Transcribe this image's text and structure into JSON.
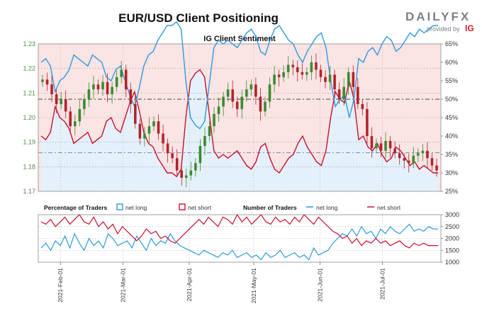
{
  "header": {
    "title": "EUR/USD Client Positioning",
    "logo_text": "DAILYFX",
    "logo_sub": "provided by",
    "logo_brand": "IG"
  },
  "colors": {
    "net_long": "#2f98e0",
    "net_short": "#c8102e",
    "candle_up": "#3a8a2e",
    "candle_down": "#b2222a",
    "bg_long": "#e4f1fb",
    "bg_short": "#fbe4e4",
    "axis_text": "#55884a"
  },
  "chart_data": [
    {
      "type": "candlestick+line",
      "title": "IG Client Sentiment",
      "price_axis": {
        "ticks": [
          "1.23",
          "1.22",
          "1.21",
          "1.20",
          "1.19",
          "1.18",
          "1.17"
        ],
        "ylim": [
          1.17,
          1.23
        ]
      },
      "percent_axis": {
        "ticks": [
          "65%",
          "60%",
          "55%",
          "50%",
          "45%",
          "40%",
          "35%",
          "30%",
          "25%"
        ],
        "ylim": [
          25,
          65
        ]
      },
      "x_ticks": [
        "2021-Feb-01",
        "2021-Mar-01",
        "2021-Apr-01",
        "2021-May-01",
        "2021-Jun-01",
        "2021-Jul-01"
      ],
      "reference_lines": [
        50,
        35.5
      ],
      "close": [
        1.2155,
        1.2135,
        1.2095,
        1.2055,
        1.2075,
        1.2025,
        1.1965,
        1.1985,
        1.2035,
        1.2075,
        1.2115,
        1.2135,
        1.2115,
        1.2145,
        1.2095,
        1.2125,
        1.2165,
        1.2195,
        1.2115,
        1.2055,
        1.1975,
        1.1915,
        1.1935,
        1.1965,
        1.1985,
        1.1935,
        1.1895,
        1.1855,
        1.1835,
        1.1785,
        1.1755,
        1.1765,
        1.1785,
        1.1815,
        1.1885,
        1.1925,
        1.1965,
        1.2015,
        1.2045,
        1.2085,
        1.2115,
        1.2065,
        1.2035,
        1.2085,
        1.2115,
        1.2135,
        1.2085,
        1.2025,
        1.2065,
        1.2135,
        1.2175,
        1.2165,
        1.2185,
        1.2215,
        1.2205,
        1.2185,
        1.2175,
        1.2185,
        1.2225,
        1.2195,
        1.2165,
        1.2145,
        1.2175,
        1.2115,
        1.2075,
        1.2125,
        1.2185,
        1.2125,
        1.2055,
        1.2035,
        1.1925,
        1.1875,
        1.1895,
        1.1865,
        1.1905,
        1.1875,
        1.1855,
        1.1835,
        1.1825,
        1.1815,
        1.1845,
        1.1855,
        1.1865,
        1.1835,
        1.1805,
        1.1785
      ],
      "percent_net_long": [
        40,
        39,
        41,
        48,
        45,
        44,
        42,
        38,
        39,
        40,
        41,
        38,
        39,
        40,
        44,
        45,
        42,
        41,
        45,
        49,
        52,
        47,
        41,
        38,
        37,
        34,
        32,
        30,
        30,
        29,
        31,
        45,
        55,
        57,
        58,
        56,
        46,
        36,
        34,
        35,
        34,
        35,
        36,
        34,
        32,
        31,
        33,
        37,
        38,
        34,
        31,
        30,
        32,
        34,
        35,
        38,
        40,
        37,
        35,
        33,
        32,
        36,
        45,
        52,
        50,
        49,
        55,
        50,
        39,
        40,
        37,
        36,
        38,
        35,
        33,
        34,
        37,
        36,
        34,
        32,
        33,
        31,
        32,
        31,
        30,
        30
      ],
      "percent_net_short": [
        60,
        61,
        59,
        52,
        55,
        56,
        58,
        62,
        61,
        60,
        59,
        62,
        61,
        60,
        56,
        55,
        58,
        59,
        55,
        51,
        48,
        53,
        59,
        62,
        63,
        66,
        68,
        70,
        70,
        71,
        69,
        55,
        45,
        43,
        42,
        44,
        54,
        64,
        66,
        65,
        66,
        65,
        64,
        66,
        68,
        69,
        67,
        63,
        62,
        66,
        69,
        70,
        68,
        66,
        65,
        62,
        60,
        63,
        65,
        67,
        68,
        64,
        55,
        48,
        50,
        51,
        45,
        50,
        61,
        60,
        63,
        64,
        62,
        65,
        67,
        66,
        63,
        64,
        66,
        68,
        67,
        69,
        68,
        69,
        70,
        70
      ]
    },
    {
      "type": "line",
      "title": "Number of Traders",
      "legend": [
        {
          "label": "Percentage of Traders"
        },
        {
          "label": "net long",
          "marker": "box",
          "color": "#2f98e0"
        },
        {
          "label": "net short",
          "marker": "box",
          "color": "#c8102e"
        },
        {
          "label": "Number of Traders"
        },
        {
          "label": "net long",
          "marker": "line",
          "color": "#2f98e0"
        },
        {
          "label": "net short",
          "marker": "line",
          "color": "#c8102e"
        }
      ],
      "y_ticks": [
        "3000",
        "2500",
        "2000",
        "1500",
        "1000"
      ],
      "ylim": [
        1000,
        3000
      ],
      "series": [
        {
          "name": "net long",
          "values": [
            1600,
            1800,
            1500,
            1900,
            1700,
            2100,
            1600,
            2200,
            1800,
            1500,
            2000,
            1700,
            1900,
            1600,
            2200,
            2000,
            1700,
            1800,
            1900,
            1600,
            2100,
            1800,
            1500,
            2000,
            1700,
            1900,
            1800,
            2200,
            1900,
            1700,
            1600,
            1500,
            1400,
            1300,
            1500,
            1400,
            1300,
            1200,
            1400,
            1300,
            1500,
            1200,
            1300,
            1400,
            1200,
            1300,
            1100,
            1400,
            1200,
            1300,
            1500,
            1200,
            1300,
            1400,
            1200,
            1300,
            1100,
            1600,
            1300,
            1400,
            1500,
            1800,
            2000,
            2200,
            2100,
            2400,
            2100,
            2500,
            2200,
            2300,
            2000,
            2400,
            2200,
            2500,
            2300,
            2200,
            2400,
            2600,
            2300,
            2400,
            2300,
            2500,
            2400,
            2400
          ]
        },
        {
          "name": "net short",
          "values": [
            2700,
            2600,
            2800,
            2500,
            2700,
            2900,
            2600,
            2800,
            3000,
            2700,
            2600,
            2900,
            2500,
            2700,
            2400,
            2600,
            2200,
            2500,
            2300,
            2100,
            1900,
            2100,
            2400,
            2200,
            2300,
            2000,
            2100,
            1900,
            1800,
            2000,
            2200,
            2400,
            2600,
            2800,
            2600,
            2900,
            2700,
            2500,
            2900,
            2800,
            2600,
            3000,
            2700,
            2900,
            2600,
            2800,
            3000,
            2700,
            2600,
            2900,
            2700,
            2800,
            2600,
            2900,
            2700,
            3000,
            2800,
            2600,
            2900,
            2700,
            2500,
            2300,
            2200,
            2000,
            2100,
            1800,
            2000,
            1700,
            1900,
            1800,
            2000,
            1800,
            1900,
            1700,
            1800,
            1900,
            1700,
            1600,
            1800,
            1700,
            1800,
            1700,
            1700,
            1700
          ]
        }
      ]
    }
  ]
}
